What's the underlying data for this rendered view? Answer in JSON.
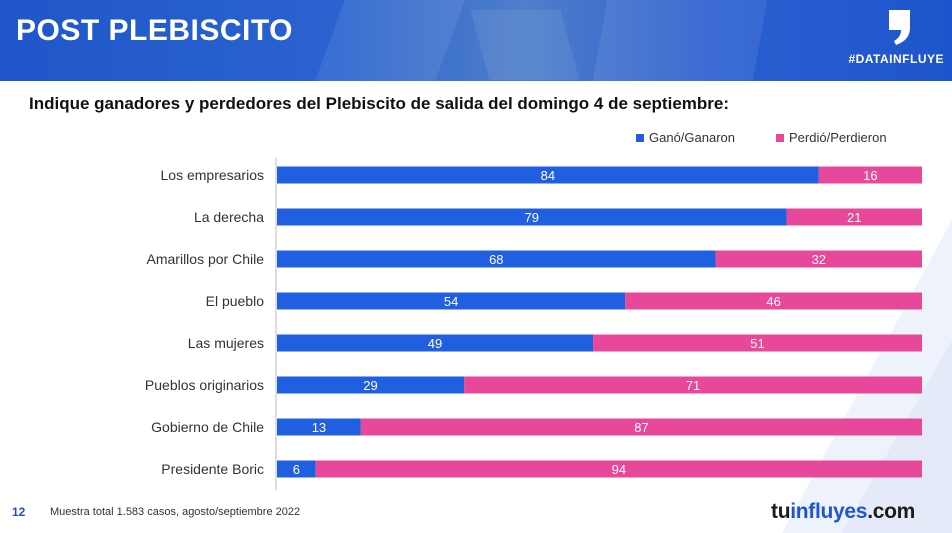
{
  "header": {
    "title": "POST PLEBISCITO",
    "tag": "#DATAINFLUYE"
  },
  "question": "Indique ganadores y perdedores del Plebiscito de salida del domingo 4 de septiembre:",
  "footer": {
    "page": "12",
    "note": "Muestra total 1.583 casos, agosto/septiembre 2022",
    "brand_a": "tu",
    "brand_b": "influyes",
    "brand_c": ".com"
  },
  "colors": {
    "won": "#1f5fe0",
    "lost": "#e8489a",
    "header": "#1f56c9"
  },
  "chart_data": {
    "type": "bar",
    "orientation": "horizontal",
    "stacked": true,
    "categories": [
      "Los empresarios",
      "La derecha",
      "Amarillos por Chile",
      "El pueblo",
      "Las mujeres",
      "Pueblos originarios",
      "Gobierno de Chile",
      "Presidente Boric"
    ],
    "series": [
      {
        "name": "Ganó/Ganaron",
        "values": [
          84,
          79,
          68,
          54,
          49,
          29,
          13,
          6
        ]
      },
      {
        "name": "Perdió/Perdieron",
        "values": [
          16,
          21,
          32,
          46,
          51,
          71,
          87,
          94
        ]
      }
    ],
    "xlim": [
      0,
      100
    ],
    "legend": "top-right",
    "grid": false
  }
}
